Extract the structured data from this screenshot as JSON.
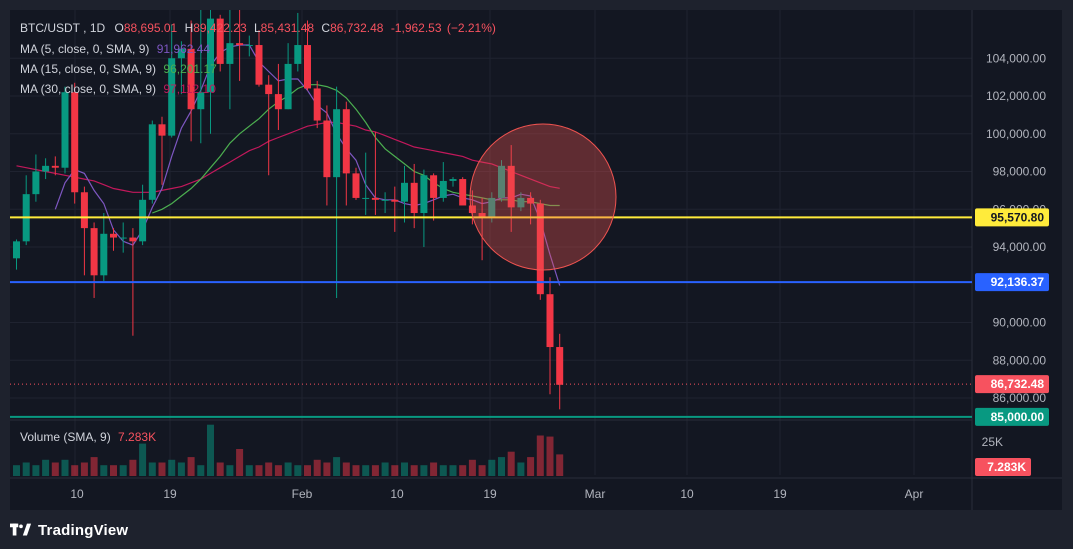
{
  "brand": {
    "name": "TradingView"
  },
  "symbol": {
    "name": "BTC/USDT",
    "interval": "1D",
    "open_label": "O",
    "open": "88,695.01",
    "high_label": "H",
    "high": "89,422.23",
    "low_label": "L",
    "low": "85,431.48",
    "close_label": "C",
    "close": "86,732.48",
    "change": "-1,962.53",
    "change_pct": "(−2.21%)"
  },
  "indicators": {
    "ma5": {
      "label": "MA (5, close, 0, SMA, 9)",
      "value": "91,962.44",
      "color": "#7e57c2"
    },
    "ma15": {
      "label": "MA (15, close, 0, SMA, 9)",
      "value": "96,201.17",
      "color": "#4caf50"
    },
    "ma30": {
      "label": "MA (30, close, 0, SMA, 9)",
      "value": "97,112.10",
      "color": "#c2185b"
    },
    "volume": {
      "label": "Volume (SMA, 9)",
      "value": "7.283K"
    }
  },
  "price_axis": {
    "labels": [
      "104,000.00",
      "102,000.00",
      "100,000.00",
      "98,000.00",
      "96,000.00",
      "94,000.00",
      "90,000.00",
      "88,000.00",
      "86,000.00"
    ],
    "volume_label": "25K"
  },
  "time_axis": {
    "labels": [
      "10",
      "19",
      "Feb",
      "10",
      "19",
      "Mar",
      "10",
      "19",
      "Apr"
    ]
  },
  "levels": [
    {
      "price": 95570.8,
      "label": "95,570.80",
      "color": "#ffeb3b",
      "text_color": "#131722"
    },
    {
      "price": 92136.37,
      "label": "92,136.37",
      "color": "#2962ff",
      "text_color": "#ffffff"
    },
    {
      "price": 85000.0,
      "label": "85,000.00",
      "color": "#089981",
      "text_color": "#ffffff"
    }
  ],
  "current_price": {
    "price": 86732.48,
    "label": "86,732.48",
    "color": "#f7525f"
  },
  "volume_badge": {
    "label": "7.283K",
    "color": "#f7525f"
  },
  "chart_data": {
    "type": "candlestick",
    "ylim": [
      84500,
      106000
    ],
    "candles": [
      {
        "date": "Jan 1",
        "o": 93400,
        "h": 94400,
        "l": 92800,
        "c": 94300
      },
      {
        "date": "Jan 2",
        "o": 94300,
        "h": 97800,
        "l": 94100,
        "c": 96800
      },
      {
        "date": "Jan 3",
        "o": 96800,
        "h": 98900,
        "l": 96400,
        "c": 98000
      },
      {
        "date": "Jan 4",
        "o": 98000,
        "h": 98700,
        "l": 97600,
        "c": 98300
      },
      {
        "date": "Jan 5",
        "o": 98300,
        "h": 98800,
        "l": 97800,
        "c": 98200
      },
      {
        "date": "Jan 6",
        "o": 98200,
        "h": 102500,
        "l": 97900,
        "c": 102200
      },
      {
        "date": "Jan 7",
        "o": 102200,
        "h": 102700,
        "l": 96300,
        "c": 96900
      },
      {
        "date": "Jan 8",
        "o": 96900,
        "h": 97200,
        "l": 92500,
        "c": 95000
      },
      {
        "date": "Jan 9",
        "o": 95000,
        "h": 95300,
        "l": 91300,
        "c": 92500
      },
      {
        "date": "Jan 10",
        "o": 92500,
        "h": 95800,
        "l": 92200,
        "c": 94700
      },
      {
        "date": "Jan 11",
        "o": 94700,
        "h": 95000,
        "l": 93800,
        "c": 94500
      },
      {
        "date": "Jan 12",
        "o": 94500,
        "h": 95300,
        "l": 93700,
        "c": 94500
      },
      {
        "date": "Jan 13",
        "o": 94500,
        "h": 95000,
        "l": 89300,
        "c": 94300
      },
      {
        "date": "Jan 14",
        "o": 94300,
        "h": 97300,
        "l": 94100,
        "c": 96500
      },
      {
        "date": "Jan 15",
        "o": 96500,
        "h": 100700,
        "l": 96300,
        "c": 100500
      },
      {
        "date": "Jan 16",
        "o": 100500,
        "h": 100900,
        "l": 97300,
        "c": 99900
      },
      {
        "date": "Jan 17",
        "o": 99900,
        "h": 105800,
        "l": 99800,
        "c": 104000
      },
      {
        "date": "Jan 18",
        "o": 104000,
        "h": 104900,
        "l": 102100,
        "c": 104500
      },
      {
        "date": "Jan 19",
        "o": 104500,
        "h": 106000,
        "l": 99600,
        "c": 101300
      },
      {
        "date": "Jan 20",
        "o": 101300,
        "h": 109300,
        "l": 99500,
        "c": 102200
      },
      {
        "date": "Jan 21",
        "o": 102200,
        "h": 107100,
        "l": 100000,
        "c": 106100
      },
      {
        "date": "Jan 22",
        "o": 106100,
        "h": 106300,
        "l": 103300,
        "c": 103700
      },
      {
        "date": "Jan 23",
        "o": 103700,
        "h": 106800,
        "l": 101300,
        "c": 104800
      },
      {
        "date": "Jan 24",
        "o": 104800,
        "h": 107100,
        "l": 102800,
        "c": 104700
      },
      {
        "date": "Jan 25",
        "o": 104700,
        "h": 105200,
        "l": 104100,
        "c": 104700
      },
      {
        "date": "Jan 26",
        "o": 104700,
        "h": 105500,
        "l": 102500,
        "c": 102600
      },
      {
        "date": "Jan 27",
        "o": 102600,
        "h": 103100,
        "l": 97800,
        "c": 102100
      },
      {
        "date": "Jan 28",
        "o": 102100,
        "h": 103700,
        "l": 100200,
        "c": 101300
      },
      {
        "date": "Jan 29",
        "o": 101300,
        "h": 104800,
        "l": 101300,
        "c": 103700
      },
      {
        "date": "Jan 30",
        "o": 103700,
        "h": 106400,
        "l": 103300,
        "c": 104700
      },
      {
        "date": "Jan 31",
        "o": 104700,
        "h": 106000,
        "l": 102300,
        "c": 102400
      },
      {
        "date": "Feb 1",
        "o": 102400,
        "h": 102800,
        "l": 100300,
        "c": 100700
      },
      {
        "date": "Feb 2",
        "o": 100700,
        "h": 101500,
        "l": 96200,
        "c": 97700
      },
      {
        "date": "Feb 3",
        "o": 97700,
        "h": 102500,
        "l": 91300,
        "c": 101300
      },
      {
        "date": "Feb 4",
        "o": 101300,
        "h": 101700,
        "l": 96200,
        "c": 97900
      },
      {
        "date": "Feb 5",
        "o": 97900,
        "h": 98200,
        "l": 96500,
        "c": 96600
      },
      {
        "date": "Feb 6",
        "o": 96600,
        "h": 99000,
        "l": 95700,
        "c": 96600
      },
      {
        "date": "Feb 7",
        "o": 96600,
        "h": 100100,
        "l": 95700,
        "c": 96500
      },
      {
        "date": "Feb 8",
        "o": 96500,
        "h": 96900,
        "l": 95800,
        "c": 96500
      },
      {
        "date": "Feb 9",
        "o": 96500,
        "h": 97200,
        "l": 94800,
        "c": 96400
      },
      {
        "date": "Feb 10",
        "o": 96400,
        "h": 98300,
        "l": 95300,
        "c": 97400
      },
      {
        "date": "Feb 11",
        "o": 97400,
        "h": 98400,
        "l": 95000,
        "c": 95800
      },
      {
        "date": "Feb 12",
        "o": 95800,
        "h": 98100,
        "l": 94000,
        "c": 97800
      },
      {
        "date": "Feb 13",
        "o": 97800,
        "h": 97900,
        "l": 95400,
        "c": 96600
      },
      {
        "date": "Feb 14",
        "o": 96600,
        "h": 98500,
        "l": 96400,
        "c": 97500
      },
      {
        "date": "Feb 15",
        "o": 97500,
        "h": 97700,
        "l": 97200,
        "c": 97600
      },
      {
        "date": "Feb 16",
        "o": 97600,
        "h": 97700,
        "l": 96300,
        "c": 96200
      },
      {
        "date": "Feb 17",
        "o": 96200,
        "h": 97000,
        "l": 95200,
        "c": 95800
      },
      {
        "date": "Feb 18",
        "o": 95800,
        "h": 96600,
        "l": 93300,
        "c": 95600
      },
      {
        "date": "Feb 19",
        "o": 95600,
        "h": 96900,
        "l": 95300,
        "c": 96600
      },
      {
        "date": "Feb 20",
        "o": 96600,
        "h": 98600,
        "l": 96400,
        "c": 98300
      },
      {
        "date": "Feb 21",
        "o": 98300,
        "h": 99400,
        "l": 94800,
        "c": 96100
      },
      {
        "date": "Feb 22",
        "o": 96100,
        "h": 96900,
        "l": 95900,
        "c": 96600
      },
      {
        "date": "Feb 23",
        "o": 96600,
        "h": 96900,
        "l": 95200,
        "c": 96300
      },
      {
        "date": "Feb 24",
        "o": 96300,
        "h": 96500,
        "l": 91200,
        "c": 91500
      },
      {
        "date": "Feb 25",
        "o": 91500,
        "h": 92400,
        "l": 86200,
        "c": 88700
      },
      {
        "date": "Feb 26",
        "o": 88700,
        "h": 89400,
        "l": 85400,
        "c": 86700
      }
    ],
    "volume": [
      2,
      2.5,
      2,
      3,
      2.5,
      3,
      2,
      2.5,
      3.5,
      2,
      2,
      2,
      3,
      6,
      2.5,
      2.5,
      3,
      2.5,
      3.5,
      2,
      9.5,
      2.5,
      2,
      5,
      2,
      2,
      2.5,
      2,
      2.5,
      2,
      2,
      3,
      2.5,
      3.5,
      2.5,
      2,
      2,
      2,
      2.5,
      2,
      2.5,
      2,
      2,
      2.5,
      2,
      2,
      2,
      3,
      2,
      3,
      3.5,
      4.5,
      2.5,
      3.5,
      7.5,
      7.3,
      4
    ],
    "ma5": [
      null,
      null,
      null,
      null,
      96000,
      97400,
      98100,
      97900,
      97000,
      96300,
      94900,
      94300,
      94100,
      94900,
      96100,
      97100,
      98800,
      100300,
      101200,
      102300,
      103600,
      104300,
      104600,
      104700,
      104700,
      103800,
      103300,
      102800,
      102900,
      102900,
      102300,
      101500,
      101100,
      100000,
      99200,
      98600,
      97300,
      96600,
      96500,
      96500,
      96300,
      96200,
      96300,
      96500,
      96700,
      96800,
      96600,
      96500,
      96300,
      96400,
      96600,
      96600,
      96800,
      96700,
      95400,
      93600,
      91962
    ],
    "ma15": [
      null,
      null,
      null,
      null,
      null,
      null,
      null,
      null,
      null,
      null,
      null,
      null,
      null,
      null,
      95800,
      96000,
      96300,
      96700,
      97100,
      97600,
      98200,
      98800,
      99500,
      100000,
      100400,
      100800,
      101300,
      101700,
      102000,
      102400,
      102600,
      102600,
      102500,
      102300,
      101900,
      101300,
      100600,
      99800,
      99200,
      98800,
      98400,
      98000,
      97800,
      97400,
      97100,
      96900,
      96800,
      96700,
      96600,
      96500,
      96500,
      96500,
      96400,
      96400,
      96300,
      96200,
      96201
    ],
    "ma30": [
      98300,
      98200,
      98100,
      98000,
      97900,
      97800,
      97700,
      97600,
      97500,
      97300,
      97100,
      97000,
      96900,
      96900,
      96900,
      97000,
      97100,
      97200,
      97400,
      97600,
      97900,
      98200,
      98500,
      98800,
      99100,
      99300,
      99600,
      99800,
      100000,
      100200,
      100400,
      100500,
      100600,
      100600,
      100500,
      100400,
      100200,
      100100,
      99900,
      99700,
      99500,
      99300,
      99200,
      99100,
      99000,
      98900,
      98800,
      98600,
      98500,
      98400,
      98200,
      98000,
      97800,
      97600,
      97400,
      97200,
      97112
    ]
  }
}
